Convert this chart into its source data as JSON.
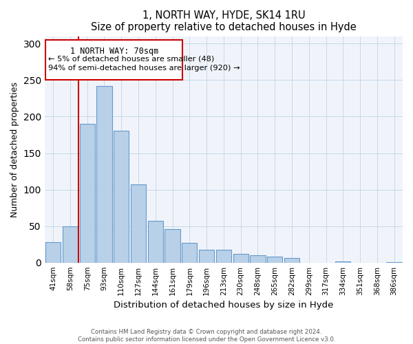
{
  "title": "1, NORTH WAY, HYDE, SK14 1RU",
  "subtitle": "Size of property relative to detached houses in Hyde",
  "xlabel": "Distribution of detached houses by size in Hyde",
  "ylabel": "Number of detached properties",
  "bar_labels": [
    "41sqm",
    "58sqm",
    "75sqm",
    "93sqm",
    "110sqm",
    "127sqm",
    "144sqm",
    "161sqm",
    "179sqm",
    "196sqm",
    "213sqm",
    "230sqm",
    "248sqm",
    "265sqm",
    "282sqm",
    "299sqm",
    "317sqm",
    "334sqm",
    "351sqm",
    "368sqm",
    "386sqm"
  ],
  "bar_values": [
    28,
    50,
    190,
    242,
    181,
    107,
    57,
    46,
    27,
    18,
    18,
    12,
    10,
    8,
    6,
    0,
    0,
    2,
    0,
    0,
    1
  ],
  "bar_color": "#b8d0e8",
  "bar_edge_color": "#6699cc",
  "highlight_line_color": "#cc0000",
  "annotation_title": "1 NORTH WAY: 70sqm",
  "annotation_line1": "← 5% of detached houses are smaller (48)",
  "annotation_line2": "94% of semi-detached houses are larger (920) →",
  "annotation_box_color": "#cc0000",
  "ylim": [
    0,
    310
  ],
  "yticks": [
    0,
    50,
    100,
    150,
    200,
    250,
    300
  ],
  "footer1": "Contains HM Land Registry data © Crown copyright and database right 2024.",
  "footer2": "Contains public sector information licensed under the Open Government Licence v3.0."
}
